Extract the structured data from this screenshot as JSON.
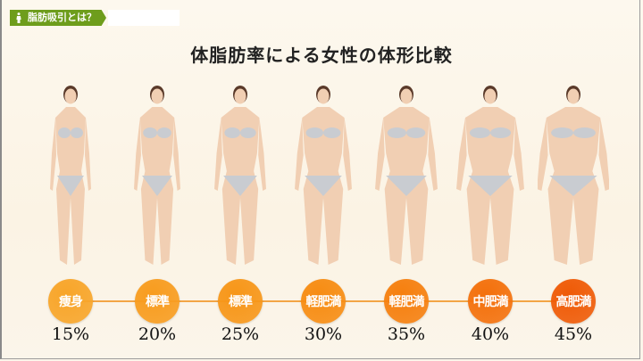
{
  "header": {
    "tag_label": "脂肪吸引とは？",
    "tag_icon": "person-icon",
    "tag_color": "#6e9d1c"
  },
  "title": "体脂肪率による女性の体形比較",
  "levels": [
    {
      "label": "痩身",
      "percent": "15%",
      "color": "#f8a529"
    },
    {
      "label": "標準",
      "percent": "20%",
      "color": "#f89c1e"
    },
    {
      "label": "標準",
      "percent": "25%",
      "color": "#f79618"
    },
    {
      "label": "軽肥満",
      "percent": "30%",
      "color": "#f78c12"
    },
    {
      "label": "軽肥満",
      "percent": "35%",
      "color": "#f67f0e"
    },
    {
      "label": "中肥満",
      "percent": "40%",
      "color": "#f4700b"
    },
    {
      "label": "高肥満",
      "percent": "45%",
      "color": "#ef5a06"
    }
  ]
}
